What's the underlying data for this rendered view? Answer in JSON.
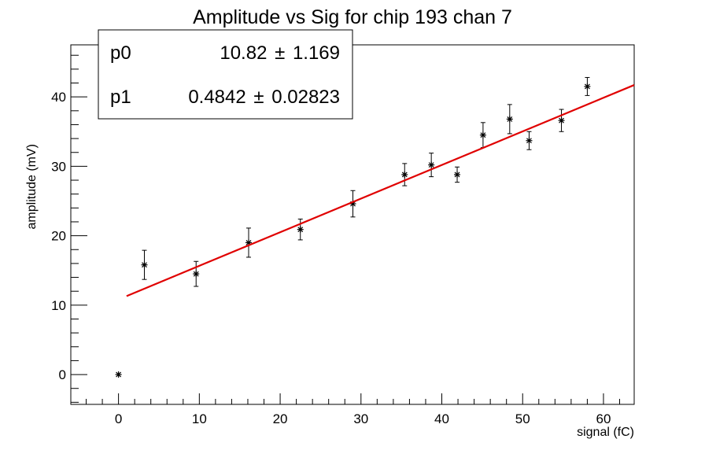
{
  "chart_data": {
    "type": "scatter",
    "title": "Amplitude vs Sig for chip 193 chan 7",
    "xlabel": "signal (fC)",
    "ylabel": "amplitude (mV)",
    "xlim": [
      -5.9,
      63.8
    ],
    "ylim": [
      -4.3,
      47.5
    ],
    "x_ticks": [
      0,
      10,
      20,
      30,
      40,
      50,
      60
    ],
    "y_ticks": [
      0,
      10,
      20,
      30,
      40
    ],
    "x_tick_labels": [
      "0",
      "10",
      "20",
      "30",
      "40",
      "50",
      "60"
    ],
    "y_tick_labels": [
      "0",
      "10",
      "20",
      "30",
      "40"
    ],
    "grid": false,
    "legend": "none",
    "marker": "asterisk",
    "marker_color": "#000000",
    "points": [
      {
        "x": 0.0,
        "y": 0.0,
        "err": 0.0
      },
      {
        "x": 3.2,
        "y": 15.8,
        "err": 2.1
      },
      {
        "x": 9.6,
        "y": 14.5,
        "err": 1.8
      },
      {
        "x": 16.1,
        "y": 19.0,
        "err": 2.1
      },
      {
        "x": 22.5,
        "y": 20.9,
        "err": 1.5
      },
      {
        "x": 29.0,
        "y": 24.6,
        "err": 1.9
      },
      {
        "x": 35.4,
        "y": 28.8,
        "err": 1.6
      },
      {
        "x": 38.7,
        "y": 30.2,
        "err": 1.7
      },
      {
        "x": 41.9,
        "y": 28.8,
        "err": 1.1
      },
      {
        "x": 45.1,
        "y": 34.5,
        "err": 1.8
      },
      {
        "x": 48.4,
        "y": 36.8,
        "err": 2.1
      },
      {
        "x": 50.8,
        "y": 33.7,
        "err": 1.3
      },
      {
        "x": 54.8,
        "y": 36.6,
        "err": 1.6
      },
      {
        "x": 58.0,
        "y": 41.5,
        "err": 1.3
      }
    ],
    "fit": {
      "type": "linear",
      "color": "#e00000",
      "x_range": [
        1.0,
        63.8
      ],
      "p0": 10.82,
      "p1": 0.4842
    },
    "stats_box": {
      "rows": [
        {
          "name": "p0",
          "value": "10.82",
          "pm": "±",
          "error": "1.169"
        },
        {
          "name": "p1",
          "value": "0.4842",
          "pm": "±",
          "error": "0.02823"
        }
      ]
    }
  }
}
